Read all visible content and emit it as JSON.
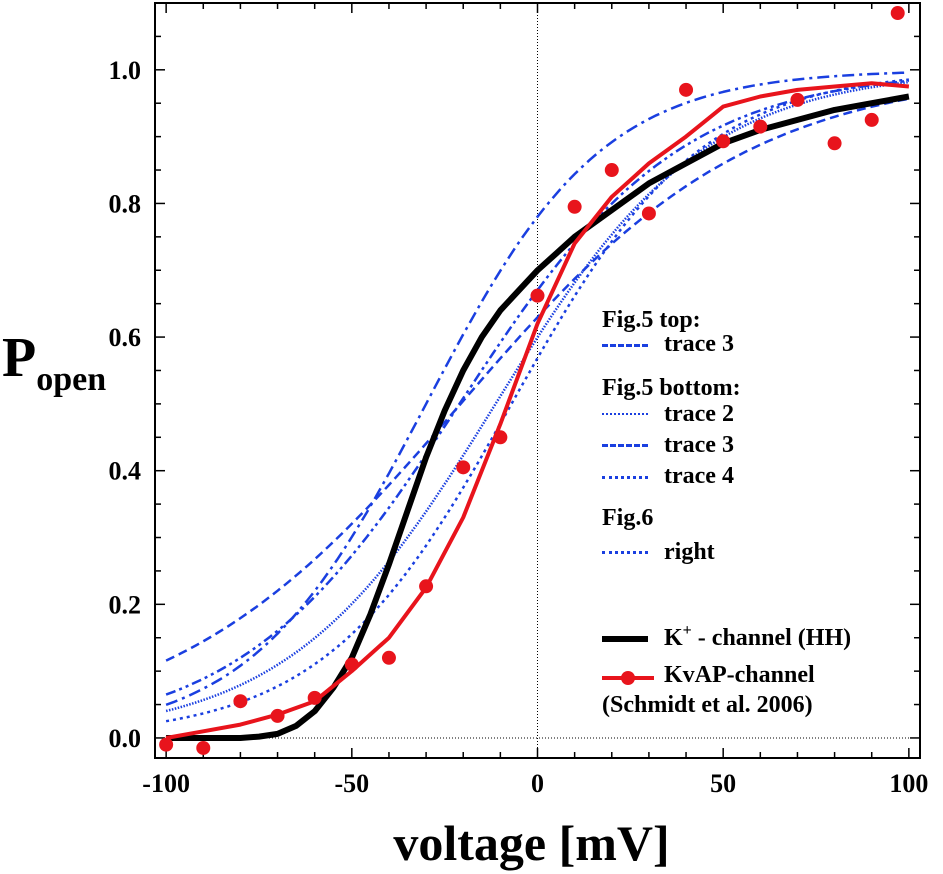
{
  "chart_data": {
    "type": "line",
    "title": "",
    "xlabel": "voltage [mV]",
    "ylabel_main": "P",
    "ylabel_sub": "open",
    "xlim": [
      -103,
      103
    ],
    "ylim": [
      -0.03,
      1.1
    ],
    "xticks": [
      -100,
      -50,
      0,
      50,
      100
    ],
    "xtick_labels": [
      "-100",
      "-50",
      "0",
      "50",
      "100"
    ],
    "yticks": [
      0.0,
      0.2,
      0.4,
      0.6,
      0.8,
      1.0
    ],
    "ytick_labels": [
      "0.0",
      "0.2",
      "0.4",
      "0.6",
      "0.8",
      "1.0"
    ],
    "reference_lines": {
      "x": 0,
      "y": 0
    },
    "legend_placement": "center-right",
    "series": [
      {
        "name": "Fig.5 top: trace 3",
        "color": "#1a3fe0",
        "dash": "dashdot",
        "model": "boltzmann",
        "v_half": -30,
        "slope": 23.7
      },
      {
        "name": "Fig.5 bottom: trace 2",
        "color": "#1a3fe0",
        "dash": "densedot",
        "model": "boltzmann",
        "v_half": -11.3,
        "slope": 28
      },
      {
        "name": "Fig.5 bottom: trace 3",
        "color": "#1a3fe0",
        "dash": "dash",
        "model": "boltzmann",
        "v_half": -20.7,
        "slope": 39
      },
      {
        "name": "Fig.5 bottom: trace 4",
        "color": "#1a3fe0",
        "dash": "dot",
        "model": "boltzmann",
        "v_half": -7,
        "slope": 25.4
      },
      {
        "name": "Fig.6 right",
        "color": "#1a3fe0",
        "dash": "dashdotdot",
        "model": "boltzmann",
        "v_half": -21,
        "slope": 29.6
      },
      {
        "name": "K+ - channel (HH)",
        "color": "#000000",
        "dash": "solid",
        "x": [
          -100,
          -90,
          -80,
          -75,
          -70,
          -65,
          -60,
          -55,
          -50,
          -45,
          -40,
          -35,
          -30,
          -25,
          -20,
          -15,
          -10,
          -5,
          0,
          5,
          10,
          20,
          30,
          40,
          50,
          60,
          70,
          80,
          90,
          100
        ],
        "y": [
          0.0,
          0.0,
          0.0,
          0.002,
          0.006,
          0.018,
          0.04,
          0.075,
          0.12,
          0.185,
          0.26,
          0.34,
          0.42,
          0.49,
          0.55,
          0.6,
          0.64,
          0.67,
          0.7,
          0.725,
          0.75,
          0.79,
          0.83,
          0.86,
          0.89,
          0.91,
          0.925,
          0.94,
          0.95,
          0.96
        ]
      },
      {
        "name": "KvAP-channel (Schmidt et al. 2006) fit",
        "color": "#e8141c",
        "dash": "solid",
        "x": [
          -100,
          -90,
          -80,
          -70,
          -60,
          -50,
          -40,
          -30,
          -20,
          -10,
          0,
          10,
          20,
          30,
          40,
          50,
          60,
          70,
          80,
          90,
          100
        ],
        "y": [
          0.0,
          0.01,
          0.02,
          0.035,
          0.055,
          0.1,
          0.15,
          0.225,
          0.33,
          0.47,
          0.62,
          0.74,
          0.81,
          0.86,
          0.9,
          0.945,
          0.96,
          0.97,
          0.975,
          0.98,
          0.975
        ]
      },
      {
        "name": "KvAP-channel data",
        "color": "#e8141c",
        "marker": "circle",
        "x": [
          -100,
          -90,
          -80,
          -70,
          -60,
          -50,
          -40,
          -30,
          -20,
          -10,
          0,
          10,
          20,
          30,
          40,
          50,
          60,
          70,
          80,
          90,
          97
        ],
        "y": [
          -0.01,
          -0.015,
          0.055,
          0.033,
          0.06,
          0.11,
          0.12,
          0.227,
          0.405,
          0.45,
          0.662,
          0.795,
          0.85,
          0.785,
          0.97,
          0.893,
          0.915,
          0.955,
          0.89,
          0.925,
          1.085
        ]
      }
    ],
    "legend": {
      "groups": [
        {
          "header": "Fig.5 top:",
          "items": [
            "trace 3"
          ]
        },
        {
          "header": "Fig.5 bottom:",
          "items": [
            "trace 2",
            "trace 3",
            "trace 4"
          ]
        },
        {
          "header": "Fig.6",
          "items": [
            "right"
          ]
        }
      ],
      "hh_label_k": "K",
      "hh_label_sup": "+",
      "hh_label_rest": " - channel (HH)",
      "kvap_label": "KvAP-channel",
      "kvap_citation": "(Schmidt et al. 2006)"
    }
  }
}
